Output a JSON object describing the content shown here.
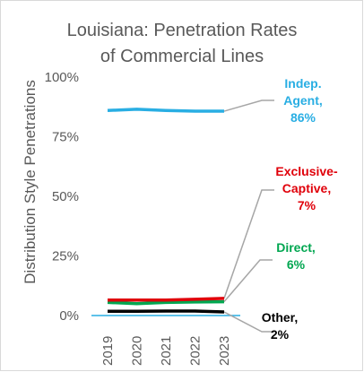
{
  "chart_data": {
    "type": "line",
    "title_lines": [
      "Louisiana: Penetration Rates",
      "of Commercial Lines"
    ],
    "xlabel": "",
    "ylabel": "Distribution Style Penetrations",
    "categories": [
      "2019",
      "2020",
      "2021",
      "2022",
      "2023"
    ],
    "ylim": [
      0,
      100
    ],
    "yticks": [
      "0%",
      "25%",
      "50%",
      "75%",
      "100%"
    ],
    "grid": false,
    "legend": "none",
    "series": [
      {
        "name": "Indep. Agent",
        "values": [
          86,
          86.5,
          86,
          85.7,
          85.7
        ],
        "color": "#29AEE3",
        "label_lines": [
          "Indep.",
          "Agent,",
          "86%"
        ]
      },
      {
        "name": "Exclusive-Captive",
        "values": [
          6.5,
          6.5,
          6.5,
          6.8,
          7.2
        ],
        "color": "#E0000A",
        "label_lines": [
          "Exclusive-",
          "Captive,",
          "7%"
        ]
      },
      {
        "name": "Direct",
        "values": [
          5.5,
          5.0,
          5.5,
          5.7,
          5.8
        ],
        "color": "#00A650",
        "label_lines": [
          "Direct,",
          "6%"
        ]
      },
      {
        "name": "Other",
        "values": [
          1.8,
          1.8,
          1.9,
          1.9,
          1.5
        ],
        "color": "#000000",
        "label_lines": [
          "Other,",
          "2%"
        ]
      }
    ],
    "zero_line_color": "#29AEE3",
    "leader_color": "#A6A6A6"
  }
}
